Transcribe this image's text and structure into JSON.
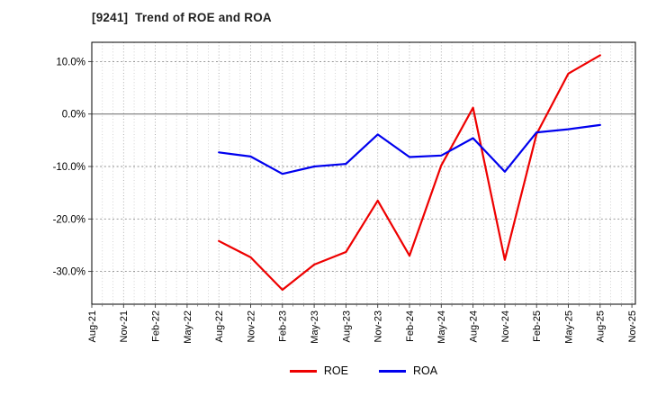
{
  "chart_data": {
    "type": "line",
    "title": "[9241]  Trend of ROE and ROA",
    "xlabel": "",
    "ylabel": "",
    "grid": true,
    "legend_position": "bottom-center",
    "x_tick_labels": [
      "Aug-21",
      "Nov-21",
      "Feb-22",
      "May-22",
      "Aug-22",
      "Nov-22",
      "Feb-23",
      "May-23",
      "Aug-23",
      "Nov-23",
      "Feb-24",
      "May-24",
      "Aug-24",
      "Nov-24",
      "Feb-25",
      "May-25",
      "Aug-25",
      "Nov-25"
    ],
    "y_tick_values": [
      10,
      0,
      -10,
      -20,
      -30
    ],
    "y_tick_labels": [
      "10.0%",
      "0.0%",
      "-10.0%",
      "-20.0%",
      "-30.0%"
    ],
    "ylim": [
      -36.2,
      13.7
    ],
    "categories": [
      "Aug-22",
      "Nov-22",
      "Feb-23",
      "May-23",
      "Aug-23",
      "Nov-23",
      "Feb-24",
      "May-24",
      "Aug-24",
      "Nov-24",
      "Feb-25",
      "May-25",
      "Aug-25"
    ],
    "category_start_tick_index": 4,
    "series": [
      {
        "name": "ROE",
        "color": "#ee0000",
        "values": [
          -24.2,
          -27.3,
          -33.5,
          -28.7,
          -26.3,
          -16.5,
          -27.0,
          -9.8,
          1.2,
          -27.8,
          -3.8,
          7.7,
          11.2
        ]
      },
      {
        "name": "ROA",
        "color": "#0000ee",
        "values": [
          -7.3,
          -8.1,
          -11.4,
          -10.0,
          -9.5,
          -3.9,
          -8.2,
          -7.9,
          -4.6,
          -11.0,
          -3.5,
          -2.9,
          -2.1
        ]
      }
    ],
    "colors": {
      "background": "#ffffff",
      "plot_border": "#000000",
      "zero_line": "#7a7a7a",
      "major_grid": "#9a9a9a",
      "minor_grid": "#c9c9c9",
      "tick_text": "#000000"
    }
  }
}
